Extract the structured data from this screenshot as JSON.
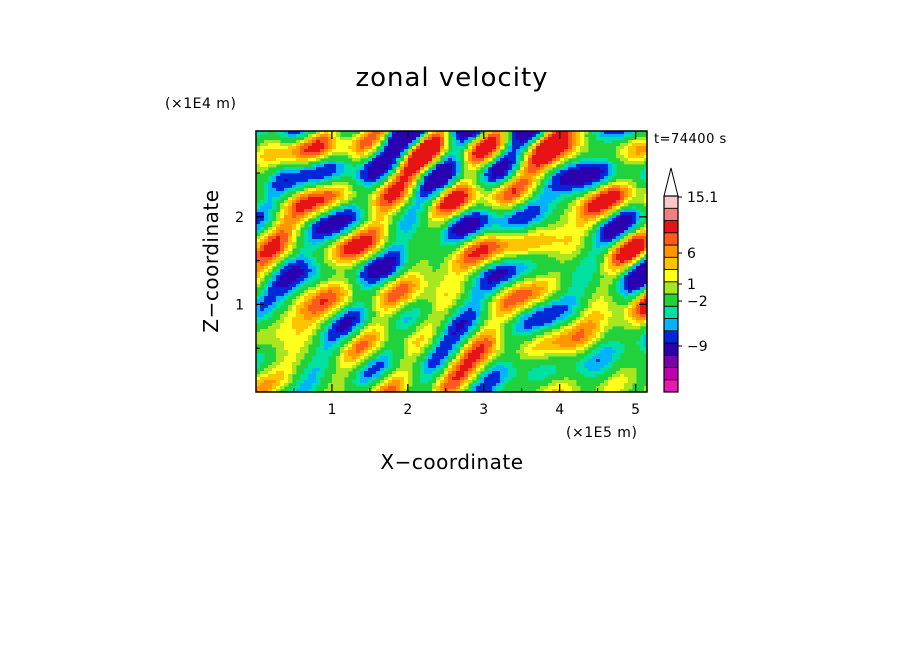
{
  "chart_data": {
    "type": "heatmap",
    "title": "zonal velocity",
    "xlabel": "X−coordinate",
    "ylabel": "Z−coordinate",
    "x_unit_label": "(×1E5 m)",
    "y_unit_label": "(×1E4 m)",
    "time_label": "t=74400 s",
    "xlim": [
      0,
      5.15
    ],
    "ylim": [
      0,
      2.98
    ],
    "x_ticks": [
      1,
      2,
      3,
      4,
      5
    ],
    "x_tick_labels": [
      "1",
      "2",
      "3",
      "4",
      "5"
    ],
    "y_ticks": [
      1,
      2
    ],
    "y_tick_labels": [
      "1",
      "2"
    ],
    "colorbar": {
      "colors": [
        "#e619b3",
        "#c000b0",
        "#7a00a8",
        "#2a00b0",
        "#0028d8",
        "#00b4ff",
        "#00e0a0",
        "#22d23c",
        "#a8e620",
        "#ffff1e",
        "#ffc400",
        "#ff9600",
        "#ff5a1e",
        "#e61414",
        "#f08080",
        "#f8c8c8"
      ],
      "labels": [
        "15.1",
        "6",
        "1",
        "−2",
        "−9"
      ],
      "label_values": [
        15.1,
        6,
        1,
        -2,
        -9
      ]
    },
    "grid": false,
    "legend": "colorbar-right"
  }
}
